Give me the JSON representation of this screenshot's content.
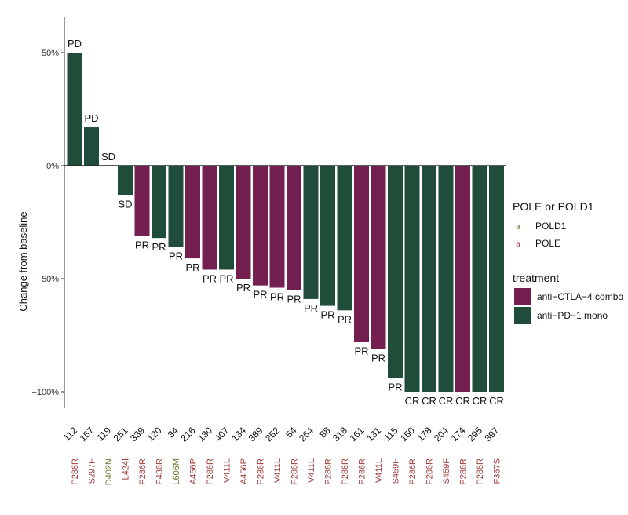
{
  "chart_data": {
    "type": "bar",
    "ylabel": "Change from baseline",
    "ylim": [
      -115,
      62
    ],
    "yticks": [
      {
        "value": 50,
        "label": "50%"
      },
      {
        "value": 0,
        "label": "0%"
      },
      {
        "value": -50,
        "label": "-50%"
      },
      {
        "value": -100,
        "label": "-100%"
      }
    ],
    "bars": [
      {
        "id": "112",
        "value": 50,
        "response": "PD",
        "treatment": "anti-PD-1 mono",
        "mutation": "P286R",
        "gene": "POLE"
      },
      {
        "id": "157",
        "value": 17,
        "response": "PD",
        "treatment": "anti-PD-1 mono",
        "mutation": "S297F",
        "gene": "POLE"
      },
      {
        "id": "119",
        "value": 0,
        "response": "SD",
        "treatment": "anti-PD-1 mono",
        "mutation": "D402N",
        "gene": "POLD1"
      },
      {
        "id": "251",
        "value": -13,
        "response": "SD",
        "treatment": "anti-PD-1 mono",
        "mutation": "L424I",
        "gene": "POLE"
      },
      {
        "id": "339",
        "value": -31,
        "response": "PR",
        "treatment": "anti-CTLA-4 combo",
        "mutation": "P286R",
        "gene": "POLE"
      },
      {
        "id": "120",
        "value": -32,
        "response": "PR",
        "treatment": "anti-PD-1 mono",
        "mutation": "P436R",
        "gene": "POLE"
      },
      {
        "id": "34",
        "value": -36,
        "response": "PR",
        "treatment": "anti-PD-1 mono",
        "mutation": "L606M",
        "gene": "POLD1"
      },
      {
        "id": "216",
        "value": -41,
        "response": "PR",
        "treatment": "anti-CTLA-4 combo",
        "mutation": "A456P",
        "gene": "POLE"
      },
      {
        "id": "130",
        "value": -46,
        "response": "PR",
        "treatment": "anti-CTLA-4 combo",
        "mutation": "P286R",
        "gene": "POLE"
      },
      {
        "id": "407",
        "value": -46,
        "response": "PR",
        "treatment": "anti-PD-1 mono",
        "mutation": "V411L",
        "gene": "POLE"
      },
      {
        "id": "134",
        "value": -50,
        "response": "PR",
        "treatment": "anti-CTLA-4 combo",
        "mutation": "A456P",
        "gene": "POLE"
      },
      {
        "id": "389",
        "value": -53,
        "response": "PR",
        "treatment": "anti-CTLA-4 combo",
        "mutation": "P286R",
        "gene": "POLE"
      },
      {
        "id": "252",
        "value": -54,
        "response": "PR",
        "treatment": "anti-CTLA-4 combo",
        "mutation": "V411L",
        "gene": "POLE"
      },
      {
        "id": "54",
        "value": -55,
        "response": "PR",
        "treatment": "anti-CTLA-4 combo",
        "mutation": "P286R",
        "gene": "POLE"
      },
      {
        "id": "264",
        "value": -59,
        "response": "PR",
        "treatment": "anti-PD-1 mono",
        "mutation": "V411L",
        "gene": "POLE"
      },
      {
        "id": "88",
        "value": -62,
        "response": "PR",
        "treatment": "anti-PD-1 mono",
        "mutation": "P286R",
        "gene": "POLE"
      },
      {
        "id": "318",
        "value": -64,
        "response": "PR",
        "treatment": "anti-PD-1 mono",
        "mutation": "P286R",
        "gene": "POLE"
      },
      {
        "id": "161",
        "value": -78,
        "response": "PR",
        "treatment": "anti-CTLA-4 combo",
        "mutation": "P286R",
        "gene": "POLE"
      },
      {
        "id": "131",
        "value": -81,
        "response": "PR",
        "treatment": "anti-CTLA-4 combo",
        "mutation": "V411L",
        "gene": "POLE"
      },
      {
        "id": "115",
        "value": -94,
        "response": "PR",
        "treatment": "anti-PD-1 mono",
        "mutation": "S459F",
        "gene": "POLE"
      },
      {
        "id": "150",
        "value": -100,
        "response": "CR",
        "treatment": "anti-PD-1 mono",
        "mutation": "P286R",
        "gene": "POLE"
      },
      {
        "id": "178",
        "value": -100,
        "response": "CR",
        "treatment": "anti-PD-1 mono",
        "mutation": "P286R",
        "gene": "POLE"
      },
      {
        "id": "204",
        "value": -100,
        "response": "CR",
        "treatment": "anti-PD-1 mono",
        "mutation": "S459F",
        "gene": "POLE"
      },
      {
        "id": "174",
        "value": -100,
        "response": "CR",
        "treatment": "anti-CTLA-4 combo",
        "mutation": "P286R",
        "gene": "POLE"
      },
      {
        "id": "295",
        "value": -100,
        "response": "CR",
        "treatment": "anti-PD-1 mono",
        "mutation": "P286R",
        "gene": "POLE"
      },
      {
        "id": "397",
        "value": -100,
        "response": "CR",
        "treatment": "anti-PD-1 mono",
        "mutation": "F367S",
        "gene": "POLE"
      }
    ],
    "legend": {
      "gene": {
        "title": "POLE or POLD1",
        "glyph": "a",
        "items": [
          {
            "label": "POLD1",
            "color": "#6b7a2a"
          },
          {
            "label": "POLE",
            "color": "#a23a3a"
          }
        ]
      },
      "treatment": {
        "title": "treatment",
        "items": [
          {
            "label": "anti-CTLA-4 combo",
            "color": "#731f4f"
          },
          {
            "label": "anti-PD-1 mono",
            "color": "#1f4d3a"
          }
        ]
      }
    }
  }
}
